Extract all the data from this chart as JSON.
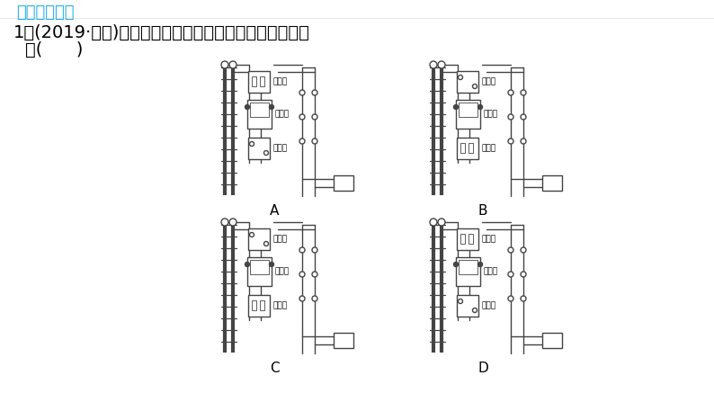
{
  "bg_color": "#ffffff",
  "title_text": "阶段作图专训",
  "title_color": "#1aafe6",
  "title_fontsize": 13,
  "q_line1": "1．(2019·天津)如图中的家庭电路元件，连接顺序正确的",
  "q_line2": "是(      )",
  "q_fontsize": 15,
  "line_color": "#444444",
  "lw": 1.0,
  "diagrams": {
    "A": {
      "ox": 218,
      "oy": 65,
      "order": [
        "保险盒",
        "电能表",
        "总开关"
      ],
      "label_top": "保险盒",
      "label_mid": "电能表",
      "label_bot": "总开关"
    },
    "B": {
      "ox": 450,
      "oy": 65,
      "order": [
        "总开关",
        "电能表",
        "保险盒"
      ],
      "label_top": "总开关",
      "label_mid": "电能表",
      "label_bot": "保险盒"
    },
    "C": {
      "ox": 218,
      "oy": 240,
      "order": [
        "总开关",
        "电能表",
        "保险盒"
      ],
      "label_top": "总开关",
      "label_mid": "电能表",
      "label_bot": "保险盒"
    },
    "D": {
      "ox": 450,
      "oy": 240,
      "order": [
        "保险盒",
        "电能表",
        "总开关"
      ],
      "label_top": "保险盒",
      "label_mid": "电能表",
      "label_bot": "总开关"
    }
  }
}
